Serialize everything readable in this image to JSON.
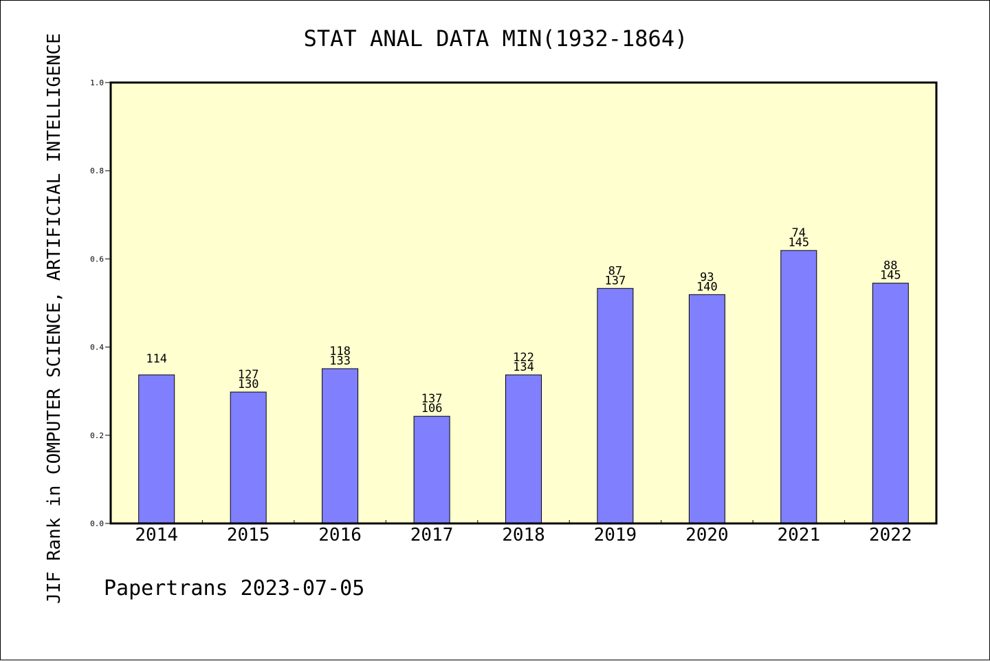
{
  "chart_data": {
    "type": "bar",
    "title": "STAT ANAL DATA MIN(1932-1864)",
    "ylabel": "JIF Rank in COMPUTER SCIENCE, ARTIFICIAL INTELLIGENCE",
    "xlabel": "",
    "categories": [
      "2014",
      "2015",
      "2016",
      "2017",
      "2018",
      "2019",
      "2020",
      "2021",
      "2022"
    ],
    "values": [
      0.337,
      0.298,
      0.351,
      0.243,
      0.337,
      0.533,
      0.519,
      0.619,
      0.545
    ],
    "bar_labels": [
      [
        "114"
      ],
      [
        "127",
        "130"
      ],
      [
        "118",
        "133"
      ],
      [
        "137",
        "106"
      ],
      [
        "122",
        "134"
      ],
      [
        "87",
        "137"
      ],
      [
        "93",
        "140"
      ],
      [
        "74",
        "145"
      ],
      [
        "88",
        "145"
      ]
    ],
    "ylim": [
      0,
      1.0
    ],
    "yticks": [
      "0.0",
      "0.2",
      "0.4",
      "0.6",
      "0.8",
      "1.0"
    ],
    "grid": false,
    "colors": {
      "bar": "#8080ff",
      "plot_background": "#ffffd0",
      "axes": "#000000"
    }
  },
  "footer": {
    "text": "Papertrans 2023-07-05"
  }
}
